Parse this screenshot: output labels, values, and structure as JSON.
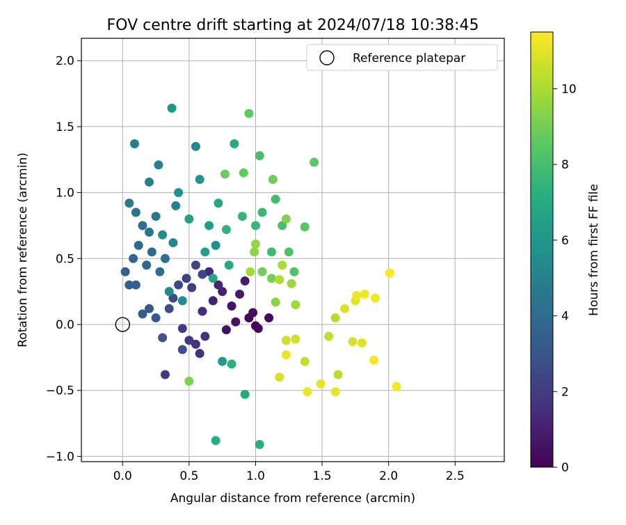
{
  "chart_data": {
    "type": "scatter",
    "title": "FOV centre drift starting at 2024/07/18 10:38:45",
    "xlabel": "Angular distance from reference (arcmin)",
    "ylabel": "Rotation from reference (arcmin)",
    "xlim": [
      -0.31,
      2.87
    ],
    "ylim": [
      -1.04,
      2.17
    ],
    "xticks": [
      0.0,
      0.5,
      1.0,
      1.5,
      2.0,
      2.5
    ],
    "xtick_labels": [
      "0.0",
      "0.5",
      "1.0",
      "1.5",
      "2.0",
      "2.5"
    ],
    "yticks": [
      -1.0,
      -0.5,
      0.0,
      0.5,
      1.0,
      1.5,
      2.0
    ],
    "ytick_labels": [
      "−1.0",
      "−0.5",
      "0.0",
      "0.5",
      "1.0",
      "1.5",
      "2.0"
    ],
    "grid": true,
    "legend": {
      "placement": "top-right",
      "entries": [
        {
          "label": "Reference platepar",
          "marker": "open-circle"
        }
      ]
    },
    "reference_point": {
      "x": 0.0,
      "y": 0.0
    },
    "colorbar": {
      "label": "Hours from first FF file",
      "colormap": "viridis",
      "range": [
        0,
        11.5
      ],
      "ticks": [
        0,
        2,
        4,
        6,
        8,
        10
      ],
      "tick_labels": [
        "0",
        "2",
        "4",
        "6",
        "8",
        "10"
      ]
    },
    "points": [
      {
        "x": 0.95,
        "y": 0.05,
        "h": 0.1
      },
      {
        "x": 1.0,
        "y": -0.01,
        "h": 0.2
      },
      {
        "x": 1.1,
        "y": 0.05,
        "h": 0.3
      },
      {
        "x": 1.02,
        "y": -0.03,
        "h": 0.2
      },
      {
        "x": 0.98,
        "y": 0.09,
        "h": 0.4
      },
      {
        "x": 0.78,
        "y": -0.04,
        "h": 0.5
      },
      {
        "x": 0.85,
        "y": 0.02,
        "h": 0.6
      },
      {
        "x": 0.82,
        "y": 0.14,
        "h": 0.7
      },
      {
        "x": 0.88,
        "y": 0.23,
        "h": 0.8
      },
      {
        "x": 0.92,
        "y": 0.33,
        "h": 0.9
      },
      {
        "x": 0.75,
        "y": 0.25,
        "h": 1.0
      },
      {
        "x": 0.68,
        "y": 0.18,
        "h": 1.1
      },
      {
        "x": 0.72,
        "y": 0.3,
        "h": 1.2
      },
      {
        "x": 0.65,
        "y": 0.4,
        "h": 1.3
      },
      {
        "x": 0.6,
        "y": 0.1,
        "h": 1.4
      },
      {
        "x": 0.62,
        "y": -0.09,
        "h": 1.5
      },
      {
        "x": 0.58,
        "y": -0.22,
        "h": 1.6
      },
      {
        "x": 0.55,
        "y": -0.15,
        "h": 1.7
      },
      {
        "x": 0.5,
        "y": -0.12,
        "h": 1.8
      },
      {
        "x": 0.32,
        "y": -0.38,
        "h": 1.9
      },
      {
        "x": 0.45,
        "y": -0.03,
        "h": 2.0
      },
      {
        "x": 0.52,
        "y": 0.28,
        "h": 2.1
      },
      {
        "x": 0.48,
        "y": 0.35,
        "h": 2.2
      },
      {
        "x": 0.55,
        "y": 0.45,
        "h": 2.3
      },
      {
        "x": 0.6,
        "y": 0.38,
        "h": 2.4
      },
      {
        "x": 0.42,
        "y": 0.3,
        "h": 2.5
      },
      {
        "x": 0.38,
        "y": 0.2,
        "h": 2.6
      },
      {
        "x": 0.35,
        "y": 0.12,
        "h": 2.7
      },
      {
        "x": 0.45,
        "y": -0.19,
        "h": 2.8
      },
      {
        "x": 0.3,
        "y": -0.1,
        "h": 3.0
      },
      {
        "x": 0.25,
        "y": 0.05,
        "h": 3.1
      },
      {
        "x": 0.2,
        "y": 0.12,
        "h": 3.2
      },
      {
        "x": 0.15,
        "y": 0.08,
        "h": 3.3
      },
      {
        "x": 0.1,
        "y": 0.3,
        "h": 3.4
      },
      {
        "x": 0.05,
        "y": 0.3,
        "h": 3.5
      },
      {
        "x": 0.02,
        "y": 0.4,
        "h": 3.6
      },
      {
        "x": 0.08,
        "y": 0.5,
        "h": 3.7
      },
      {
        "x": 0.12,
        "y": 0.6,
        "h": 3.8
      },
      {
        "x": 0.18,
        "y": 0.45,
        "h": 3.9
      },
      {
        "x": 0.22,
        "y": 0.55,
        "h": 4.0
      },
      {
        "x": 0.28,
        "y": 0.4,
        "h": 4.1
      },
      {
        "x": 0.32,
        "y": 0.5,
        "h": 4.2
      },
      {
        "x": 0.15,
        "y": 0.75,
        "h": 4.3
      },
      {
        "x": 0.1,
        "y": 0.85,
        "h": 4.4
      },
      {
        "x": 0.2,
        "y": 0.7,
        "h": 4.5
      },
      {
        "x": 0.25,
        "y": 0.82,
        "h": 4.6
      },
      {
        "x": 0.05,
        "y": 0.92,
        "h": 4.7
      },
      {
        "x": 0.09,
        "y": 1.37,
        "h": 4.8
      },
      {
        "x": 0.27,
        "y": 1.21,
        "h": 4.9
      },
      {
        "x": 0.2,
        "y": 1.08,
        "h": 5.0
      },
      {
        "x": 0.4,
        "y": 0.9,
        "h": 5.1
      },
      {
        "x": 0.38,
        "y": 0.62,
        "h": 5.2
      },
      {
        "x": 0.55,
        "y": 1.35,
        "h": 5.3
      },
      {
        "x": 0.35,
        "y": 0.25,
        "h": 5.4
      },
      {
        "x": 0.45,
        "y": 0.18,
        "h": 5.5
      },
      {
        "x": 0.3,
        "y": 0.68,
        "h": 5.6
      },
      {
        "x": 0.7,
        "y": 0.6,
        "h": 5.7
      },
      {
        "x": 0.42,
        "y": 1.0,
        "h": 5.8
      },
      {
        "x": 0.58,
        "y": 1.1,
        "h": 5.9
      },
      {
        "x": 0.37,
        "y": 1.64,
        "h": 6.0
      },
      {
        "x": 0.75,
        "y": -0.28,
        "h": 6.2
      },
      {
        "x": 0.65,
        "y": 0.75,
        "h": 6.4
      },
      {
        "x": 0.5,
        "y": 0.8,
        "h": 6.5
      },
      {
        "x": 0.62,
        "y": 0.55,
        "h": 6.6
      },
      {
        "x": 0.68,
        "y": 0.35,
        "h": 6.7
      },
      {
        "x": 0.72,
        "y": 0.92,
        "h": 6.8
      },
      {
        "x": 0.8,
        "y": 0.45,
        "h": 6.9
      },
      {
        "x": 0.84,
        "y": 1.37,
        "h": 7.0
      },
      {
        "x": 0.92,
        "y": -0.53,
        "h": 7.0
      },
      {
        "x": 0.7,
        "y": -0.88,
        "h": 7.1
      },
      {
        "x": 1.03,
        "y": -0.91,
        "h": 7.2
      },
      {
        "x": 0.82,
        "y": -0.3,
        "h": 7.3
      },
      {
        "x": 0.78,
        "y": 0.72,
        "h": 7.4
      },
      {
        "x": 0.9,
        "y": 0.82,
        "h": 7.5
      },
      {
        "x": 1.0,
        "y": 0.75,
        "h": 7.6
      },
      {
        "x": 1.05,
        "y": 0.85,
        "h": 7.7
      },
      {
        "x": 1.12,
        "y": 0.55,
        "h": 7.8
      },
      {
        "x": 1.15,
        "y": 0.95,
        "h": 7.9
      },
      {
        "x": 1.03,
        "y": 1.28,
        "h": 8.0
      },
      {
        "x": 1.2,
        "y": 0.75,
        "h": 8.1
      },
      {
        "x": 1.25,
        "y": 0.55,
        "h": 8.2
      },
      {
        "x": 1.29,
        "y": 0.4,
        "h": 8.3
      },
      {
        "x": 1.37,
        "y": 0.74,
        "h": 8.4
      },
      {
        "x": 1.44,
        "y": 1.23,
        "h": 8.5
      },
      {
        "x": 0.95,
        "y": 1.6,
        "h": 8.6
      },
      {
        "x": 0.91,
        "y": 1.15,
        "h": 8.7
      },
      {
        "x": 0.77,
        "y": 1.14,
        "h": 8.8
      },
      {
        "x": 1.13,
        "y": 1.1,
        "h": 8.9
      },
      {
        "x": 1.05,
        "y": 0.4,
        "h": 9.0
      },
      {
        "x": 1.12,
        "y": 0.35,
        "h": 9.1
      },
      {
        "x": 0.5,
        "y": -0.43,
        "h": 9.2
      },
      {
        "x": 1.23,
        "y": 0.8,
        "h": 9.3
      },
      {
        "x": 1.15,
        "y": 0.17,
        "h": 9.4
      },
      {
        "x": 0.99,
        "y": 0.55,
        "h": 9.5
      },
      {
        "x": 1.0,
        "y": 0.61,
        "h": 9.6
      },
      {
        "x": 1.27,
        "y": 0.31,
        "h": 9.7
      },
      {
        "x": 1.3,
        "y": 0.15,
        "h": 9.8
      },
      {
        "x": 0.96,
        "y": 0.4,
        "h": 9.9
      },
      {
        "x": 1.2,
        "y": 0.45,
        "h": 10.0
      },
      {
        "x": 1.18,
        "y": 0.34,
        "h": 10.1
      },
      {
        "x": 1.6,
        "y": 0.05,
        "h": 10.2
      },
      {
        "x": 1.62,
        "y": -0.38,
        "h": 10.3
      },
      {
        "x": 1.55,
        "y": -0.09,
        "h": 10.4
      },
      {
        "x": 1.37,
        "y": -0.28,
        "h": 10.5
      },
      {
        "x": 1.23,
        "y": -0.12,
        "h": 10.6
      },
      {
        "x": 1.3,
        "y": -0.11,
        "h": 10.7
      },
      {
        "x": 1.18,
        "y": -0.4,
        "h": 10.8
      },
      {
        "x": 1.73,
        "y": -0.13,
        "h": 10.8
      },
      {
        "x": 1.67,
        "y": 0.12,
        "h": 10.9
      },
      {
        "x": 1.75,
        "y": 0.18,
        "h": 11.0
      },
      {
        "x": 1.8,
        "y": -0.14,
        "h": 11.0
      },
      {
        "x": 1.6,
        "y": -0.51,
        "h": 11.1
      },
      {
        "x": 1.49,
        "y": -0.45,
        "h": 11.1
      },
      {
        "x": 1.39,
        "y": -0.51,
        "h": 11.2
      },
      {
        "x": 1.23,
        "y": -0.23,
        "h": 11.2
      },
      {
        "x": 1.82,
        "y": 0.23,
        "h": 11.3
      },
      {
        "x": 1.76,
        "y": 0.22,
        "h": 11.3
      },
      {
        "x": 1.9,
        "y": 0.2,
        "h": 11.3
      },
      {
        "x": 1.89,
        "y": -0.27,
        "h": 11.4
      },
      {
        "x": 2.06,
        "y": -0.47,
        "h": 11.4
      },
      {
        "x": 2.01,
        "y": 0.39,
        "h": 11.5
      }
    ]
  }
}
